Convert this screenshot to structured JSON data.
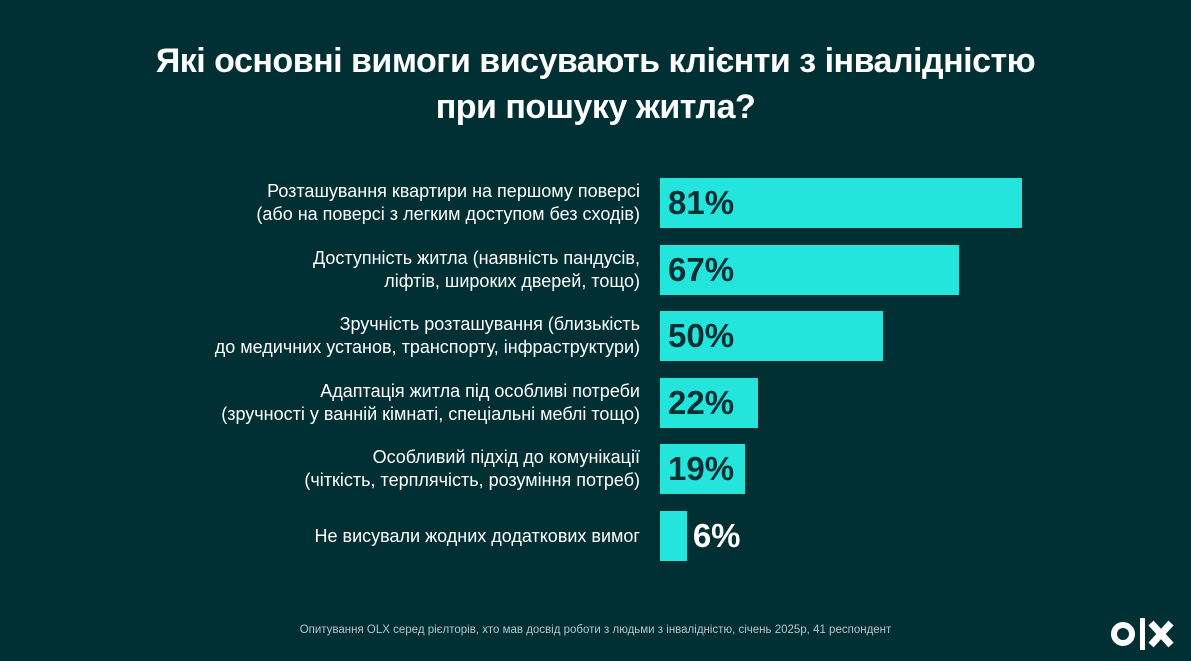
{
  "title_line1": "Які основні вимоги висувають клієнти з інвалідністю",
  "title_line2": "при пошуку житла?",
  "footer": "Опитування OLX серед рієлторів, хто мав досвід роботи з людьми з інвалідністю, січень 2025р, 41 респондент",
  "logo": "OLX",
  "colors": {
    "background": "#002f34",
    "bar": "#23e5db",
    "value_inside": "#002f34",
    "value_outside": "#ffffff"
  },
  "chart_data": {
    "type": "bar",
    "orientation": "horizontal",
    "title": "Які основні вимоги висувають клієнти з інвалідністю при пошуку житла?",
    "unit": "%",
    "xlim": [
      0,
      100
    ],
    "grid": false,
    "categories": [
      [
        "Розташування квартири на першому поверсі",
        "(або на поверсі з легким доступом без сходів)"
      ],
      [
        "Доступність житла (наявність пандусів,",
        "ліфтів, широких дверей, тощо)"
      ],
      [
        "Зручність розташування (близькість",
        "до медичних установ, транспорту, інфраструктури)"
      ],
      [
        "Адаптація житла під особливі потреби",
        "(зручності у ванній кімнаті, спеціальні меблі тощо)"
      ],
      [
        "Особливий підхід до комунікації",
        "(чіткість, терплячість, розуміння потреб)"
      ],
      [
        "Не висували жодних додаткових вимог"
      ]
    ],
    "values": [
      81,
      67,
      50,
      22,
      19,
      6
    ],
    "value_labels": [
      "81%",
      "67%",
      "50%",
      "22%",
      "19%",
      "6%"
    ]
  }
}
